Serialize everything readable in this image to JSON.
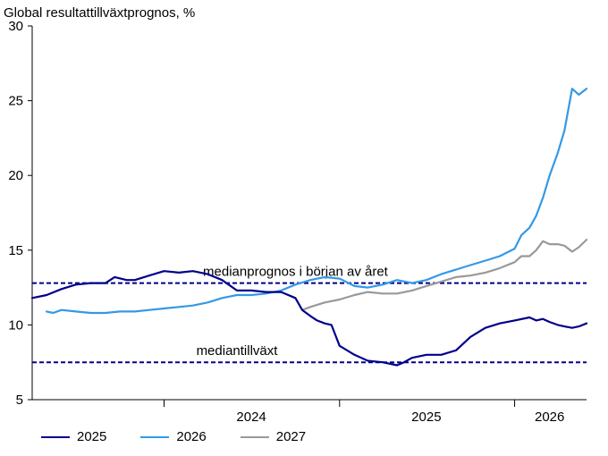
{
  "chart_data": {
    "type": "line",
    "title": "",
    "ylabel": "Global resultattillväxtprognos, %",
    "ylim": [
      5,
      30
    ],
    "yticks": [
      5,
      10,
      15,
      20,
      25,
      30
    ],
    "xlim": [
      "2023-04-01",
      "2026-05-31"
    ],
    "year_labels": [
      {
        "label": "2024",
        "at": "2024-07-01"
      },
      {
        "label": "2025",
        "at": "2025-07-01"
      },
      {
        "label": "2026",
        "at": "2026-03-15"
      }
    ],
    "year_boundaries": [
      "2024-01-01",
      "2025-01-01",
      "2026-01-01"
    ],
    "grid": false,
    "legend_position": "bottom-left",
    "series": [
      {
        "name": "2025",
        "color": "#00008b",
        "points": [
          [
            "2023-04-01",
            11.8
          ],
          [
            "2023-05-01",
            12.0
          ],
          [
            "2023-06-01",
            12.4
          ],
          [
            "2023-07-01",
            12.7
          ],
          [
            "2023-08-01",
            12.8
          ],
          [
            "2023-09-01",
            12.8
          ],
          [
            "2023-09-20",
            13.2
          ],
          [
            "2023-10-15",
            13.0
          ],
          [
            "2023-11-01",
            13.0
          ],
          [
            "2023-12-01",
            13.3
          ],
          [
            "2024-01-01",
            13.6
          ],
          [
            "2024-02-01",
            13.5
          ],
          [
            "2024-03-01",
            13.6
          ],
          [
            "2024-04-01",
            13.4
          ],
          [
            "2024-05-01",
            13.0
          ],
          [
            "2024-06-01",
            12.3
          ],
          [
            "2024-07-01",
            12.3
          ],
          [
            "2024-08-01",
            12.2
          ],
          [
            "2024-09-01",
            12.2
          ],
          [
            "2024-10-01",
            11.8
          ],
          [
            "2024-10-15",
            11.0
          ],
          [
            "2024-11-01",
            10.6
          ],
          [
            "2024-11-15",
            10.3
          ],
          [
            "2024-12-01",
            10.1
          ],
          [
            "2024-12-15",
            10.0
          ],
          [
            "2025-01-01",
            8.6
          ],
          [
            "2025-02-01",
            8.0
          ],
          [
            "2025-03-01",
            7.6
          ],
          [
            "2025-04-01",
            7.5
          ],
          [
            "2025-05-01",
            7.3
          ],
          [
            "2025-05-15",
            7.5
          ],
          [
            "2025-06-01",
            7.8
          ],
          [
            "2025-07-01",
            8.0
          ],
          [
            "2025-08-01",
            8.0
          ],
          [
            "2025-09-01",
            8.3
          ],
          [
            "2025-10-01",
            9.2
          ],
          [
            "2025-11-01",
            9.8
          ],
          [
            "2025-12-01",
            10.1
          ],
          [
            "2026-01-01",
            10.3
          ],
          [
            "2026-02-01",
            10.5
          ],
          [
            "2026-02-15",
            10.3
          ],
          [
            "2026-03-01",
            10.4
          ],
          [
            "2026-03-15",
            10.2
          ],
          [
            "2026-04-01",
            10.0
          ],
          [
            "2026-04-15",
            9.9
          ],
          [
            "2026-05-01",
            9.8
          ],
          [
            "2026-05-15",
            9.9
          ],
          [
            "2026-05-31",
            10.1
          ]
        ]
      },
      {
        "name": "2026",
        "color": "#3399e6",
        "points": [
          [
            "2023-05-01",
            10.9
          ],
          [
            "2023-05-15",
            10.8
          ],
          [
            "2023-06-01",
            11.0
          ],
          [
            "2023-07-01",
            10.9
          ],
          [
            "2023-08-01",
            10.8
          ],
          [
            "2023-09-01",
            10.8
          ],
          [
            "2023-10-01",
            10.9
          ],
          [
            "2023-11-01",
            10.9
          ],
          [
            "2023-12-01",
            11.0
          ],
          [
            "2024-01-01",
            11.1
          ],
          [
            "2024-02-01",
            11.2
          ],
          [
            "2024-03-01",
            11.3
          ],
          [
            "2024-04-01",
            11.5
          ],
          [
            "2024-05-01",
            11.8
          ],
          [
            "2024-06-01",
            12.0
          ],
          [
            "2024-07-01",
            12.0
          ],
          [
            "2024-08-01",
            12.1
          ],
          [
            "2024-09-01",
            12.3
          ],
          [
            "2024-10-01",
            12.7
          ],
          [
            "2024-11-01",
            13.0
          ],
          [
            "2024-12-01",
            13.2
          ],
          [
            "2025-01-01",
            13.1
          ],
          [
            "2025-02-01",
            12.6
          ],
          [
            "2025-03-01",
            12.5
          ],
          [
            "2025-04-01",
            12.7
          ],
          [
            "2025-05-01",
            13.0
          ],
          [
            "2025-06-01",
            12.8
          ],
          [
            "2025-07-01",
            13.0
          ],
          [
            "2025-08-01",
            13.4
          ],
          [
            "2025-09-01",
            13.7
          ],
          [
            "2025-10-01",
            14.0
          ],
          [
            "2025-11-01",
            14.3
          ],
          [
            "2025-12-01",
            14.6
          ],
          [
            "2026-01-01",
            15.1
          ],
          [
            "2026-01-15",
            16.0
          ],
          [
            "2026-02-01",
            16.5
          ],
          [
            "2026-02-15",
            17.3
          ],
          [
            "2026-03-01",
            18.5
          ],
          [
            "2026-03-15",
            20.0
          ],
          [
            "2026-04-01",
            21.5
          ],
          [
            "2026-04-15",
            23.0
          ],
          [
            "2026-05-01",
            25.8
          ],
          [
            "2026-05-15",
            25.4
          ],
          [
            "2026-05-31",
            25.8
          ]
        ]
      },
      {
        "name": "2027",
        "color": "#999999",
        "points": [
          [
            "2024-10-15",
            11.0
          ],
          [
            "2024-11-01",
            11.2
          ],
          [
            "2024-12-01",
            11.5
          ],
          [
            "2025-01-01",
            11.7
          ],
          [
            "2025-02-01",
            12.0
          ],
          [
            "2025-03-01",
            12.2
          ],
          [
            "2025-04-01",
            12.1
          ],
          [
            "2025-05-01",
            12.1
          ],
          [
            "2025-06-01",
            12.3
          ],
          [
            "2025-07-01",
            12.6
          ],
          [
            "2025-08-01",
            12.9
          ],
          [
            "2025-09-01",
            13.2
          ],
          [
            "2025-10-01",
            13.3
          ],
          [
            "2025-11-01",
            13.5
          ],
          [
            "2025-12-01",
            13.8
          ],
          [
            "2026-01-01",
            14.2
          ],
          [
            "2026-01-15",
            14.6
          ],
          [
            "2026-02-01",
            14.6
          ],
          [
            "2026-02-15",
            15.0
          ],
          [
            "2026-03-01",
            15.6
          ],
          [
            "2026-03-15",
            15.4
          ],
          [
            "2026-04-01",
            15.4
          ],
          [
            "2026-04-15",
            15.3
          ],
          [
            "2026-05-01",
            14.9
          ],
          [
            "2026-05-15",
            15.2
          ],
          [
            "2026-05-31",
            15.7
          ]
        ]
      }
    ],
    "reference_lines": [
      {
        "label": "medianprognos i början av året",
        "y": 12.8,
        "color": "#00008b",
        "dashed": true,
        "label_at": "2024-10-01"
      },
      {
        "label": "mediantillväxt",
        "y": 7.5,
        "color": "#00008b",
        "dashed": true,
        "label_at": "2024-06-01"
      }
    ]
  }
}
